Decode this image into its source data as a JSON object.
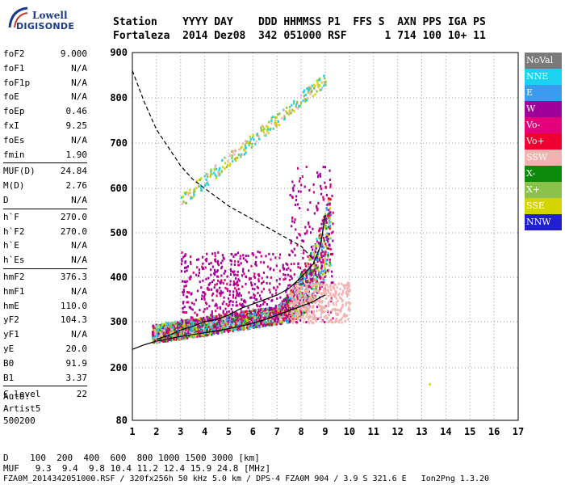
{
  "logo": {
    "line1": "Lowell",
    "line2": "DIGISONDE"
  },
  "header": {
    "labels": "Station    YYYY DAY    DDD HHMMSS P1  FFS S  AXN PPS IGA PS",
    "values": "Fortaleza  2014 Dez08  342 051000 RSF      1 714 100 10+ 11"
  },
  "params": [
    {
      "k": "foF2",
      "v": "9.000"
    },
    {
      "k": "foF1",
      "v": "N/A"
    },
    {
      "k": "foF1p",
      "v": "N/A"
    },
    {
      "k": "foE",
      "v": "N/A"
    },
    {
      "k": "foEp",
      "v": "0.46"
    },
    {
      "k": "fxI",
      "v": "9.25"
    },
    {
      "k": "foEs",
      "v": "N/A"
    },
    {
      "k": "fmin",
      "v": "1.90"
    },
    {
      "sep": true
    },
    {
      "k": "MUF(D)",
      "v": "24.84"
    },
    {
      "k": "M(D)",
      "v": "2.76"
    },
    {
      "k": "D",
      "v": "N/A"
    },
    {
      "sep": true
    },
    {
      "k": "h`F",
      "v": "270.0"
    },
    {
      "k": "h`F2",
      "v": "270.0"
    },
    {
      "k": "h`E",
      "v": "N/A"
    },
    {
      "k": "h`Es",
      "v": "N/A"
    },
    {
      "sep": true
    },
    {
      "k": "hmF2",
      "v": "376.3"
    },
    {
      "k": "hmF1",
      "v": "N/A"
    },
    {
      "k": "hmE",
      "v": "110.0"
    },
    {
      "k": "yF2",
      "v": "104.3"
    },
    {
      "k": "yF1",
      "v": "N/A"
    },
    {
      "k": "yE",
      "v": "20.0"
    },
    {
      "k": "B0",
      "v": "91.9"
    },
    {
      "k": "B1",
      "v": "3.37"
    },
    {
      "sep": true
    },
    {
      "k": "C-level",
      "v": "22"
    }
  ],
  "autoscale": {
    "line1": "Auto:",
    "line2": "Artist5",
    "line3": "500200"
  },
  "legend": [
    {
      "name": "NoVal",
      "color": "#7a7a7a"
    },
    {
      "name": "NNE",
      "color": "#19d3f0"
    },
    {
      "name": "E",
      "color": "#3a9bef"
    },
    {
      "name": "W",
      "color": "#a0009a"
    },
    {
      "name": "Vo-",
      "color": "#e3007a"
    },
    {
      "name": "Vo+",
      "color": "#f00030"
    },
    {
      "name": "SSW",
      "color": "#f2b3b0"
    },
    {
      "name": "X-",
      "color": "#0b8a0b"
    },
    {
      "name": "X+",
      "color": "#8bc34a"
    },
    {
      "name": "SSE",
      "color": "#d4d400"
    },
    {
      "name": "NNW",
      "color": "#2020d0"
    }
  ],
  "footer": {
    "d_row": "D    100  200  400  600  800 1000 1500 3000 [km]",
    "muf_row": "MUF   9.3  9.4  9.8 10.4 11.2 12.4 15.9 24.8 [MHz]",
    "file_row": "FZA0M_2014342051000.RSF / 320fx256h 50 kHz 5.0 km / DPS-4 FZA0M 904 / 3.9 S 321.6 E   Ion2Png 1.3.20"
  },
  "chart_data": {
    "type": "scatter",
    "title": "",
    "xlabel": "",
    "ylabel": "",
    "xlim": [
      1,
      17
    ],
    "ylim": [
      80,
      900
    ],
    "x_ticks": [
      1,
      2,
      3,
      4,
      5,
      6,
      7,
      8,
      9,
      10,
      11,
      12,
      13,
      14,
      15,
      16,
      17
    ],
    "y_ticks": [
      80,
      200,
      300,
      400,
      500,
      600,
      700,
      800,
      900
    ],
    "grid": true,
    "profile_curve": {
      "x": [
        1.0,
        1.5,
        2.0,
        2.5,
        3.0,
        3.5,
        4.0,
        4.5,
        5.0,
        5.5,
        6.0,
        6.5,
        7.0,
        7.5,
        8.0,
        8.5,
        8.8,
        9.0
      ],
      "y": [
        240,
        250,
        258,
        263,
        268,
        272,
        276,
        280,
        285,
        290,
        297,
        305,
        315,
        325,
        335,
        345,
        355,
        360
      ]
    },
    "trace_curve": {
      "x": [
        2.0,
        2.5,
        3.0,
        3.5,
        4.0,
        4.5,
        5.0,
        5.5,
        6.0,
        6.5,
        7.0,
        7.5,
        8.0,
        8.5,
        8.8,
        9.0
      ],
      "y": [
        262,
        270,
        282,
        290,
        300,
        305,
        315,
        330,
        340,
        350,
        360,
        375,
        400,
        430,
        470,
        540
      ]
    },
    "dashed_curve": {
      "x": [
        1.0,
        1.5,
        2.0,
        2.5,
        3.0,
        3.5,
        4.0,
        4.5,
        5.0,
        6.0,
        7.0,
        8.0,
        8.5
      ],
      "y": [
        860,
        790,
        730,
        690,
        650,
        620,
        600,
        580,
        560,
        530,
        500,
        470,
        440
      ]
    }
  }
}
